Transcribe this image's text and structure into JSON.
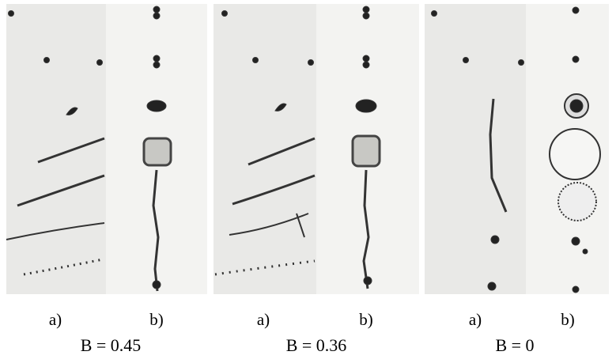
{
  "panels": [
    {
      "labels": [
        "a)",
        "b)"
      ],
      "caption": "B = 0.45"
    },
    {
      "labels": [
        "a)",
        "b)"
      ],
      "caption": "B = 0.36"
    },
    {
      "labels": [
        "a)",
        "b)"
      ],
      "caption": "B = 0"
    }
  ]
}
